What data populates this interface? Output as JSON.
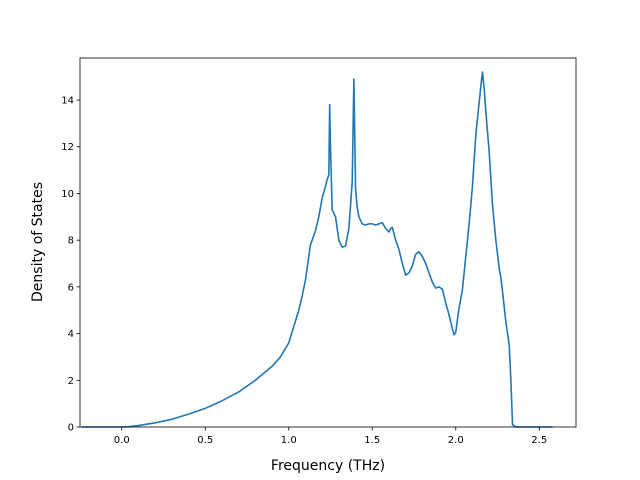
{
  "chart_data": {
    "type": "line",
    "title": "",
    "xlabel": "Frequency (THz)",
    "ylabel": "Density of States",
    "xlim": [
      -0.25,
      2.72
    ],
    "ylim": [
      0,
      15.8
    ],
    "grid": false,
    "legend": "none",
    "xticks": [
      0.0,
      0.5,
      1.0,
      1.5,
      2.0,
      2.5
    ],
    "xtick_labels": [
      "0.0",
      "0.5",
      "1.0",
      "1.5",
      "2.0",
      "2.5"
    ],
    "yticks": [
      0,
      2,
      4,
      6,
      8,
      10,
      12,
      14
    ],
    "ytick_labels": [
      "0",
      "2",
      "4",
      "6",
      "8",
      "10",
      "12",
      "14"
    ],
    "series": [
      {
        "color": "#1f77b4",
        "x": [
          -0.24,
          -0.1,
          0.0,
          0.05,
          0.1,
          0.2,
          0.3,
          0.4,
          0.5,
          0.6,
          0.7,
          0.8,
          0.9,
          0.95,
          1.0,
          1.03,
          1.06,
          1.08,
          1.1,
          1.13,
          1.16,
          1.18,
          1.2,
          1.22,
          1.23,
          1.24,
          1.245,
          1.25,
          1.26,
          1.28,
          1.3,
          1.32,
          1.34,
          1.36,
          1.38,
          1.39,
          1.4,
          1.41,
          1.42,
          1.44,
          1.46,
          1.48,
          1.5,
          1.52,
          1.54,
          1.56,
          1.58,
          1.6,
          1.61,
          1.62,
          1.64,
          1.66,
          1.68,
          1.7,
          1.72,
          1.74,
          1.76,
          1.78,
          1.8,
          1.82,
          1.84,
          1.86,
          1.88,
          1.9,
          1.92,
          1.93,
          1.94,
          1.96,
          1.98,
          1.99,
          2.0,
          2.01,
          2.02,
          2.04,
          2.06,
          2.08,
          2.1,
          2.12,
          2.14,
          2.155,
          2.16,
          2.17,
          2.18,
          2.2,
          2.22,
          2.24,
          2.26,
          2.27,
          2.28,
          2.3,
          2.32,
          2.33,
          2.34,
          2.36,
          2.4,
          2.5,
          2.58
        ],
        "y": [
          0.0,
          0.0,
          0.0,
          0.02,
          0.06,
          0.18,
          0.33,
          0.55,
          0.8,
          1.12,
          1.5,
          2.0,
          2.6,
          3.0,
          3.6,
          4.3,
          5.0,
          5.6,
          6.3,
          7.8,
          8.4,
          9.0,
          9.8,
          10.3,
          10.6,
          10.8,
          13.8,
          12.0,
          9.3,
          9.0,
          8.0,
          7.7,
          7.75,
          8.5,
          10.5,
          14.9,
          10.2,
          9.4,
          9.0,
          8.7,
          8.65,
          8.7,
          8.7,
          8.65,
          8.7,
          8.75,
          8.5,
          8.35,
          8.5,
          8.55,
          8.0,
          7.6,
          7.0,
          6.5,
          6.6,
          6.9,
          7.4,
          7.5,
          7.3,
          7.0,
          6.6,
          6.2,
          5.95,
          6.0,
          5.9,
          5.6,
          5.3,
          4.8,
          4.2,
          3.95,
          4.05,
          4.6,
          5.1,
          5.9,
          7.3,
          8.7,
          10.3,
          12.5,
          13.9,
          14.9,
          15.2,
          14.5,
          13.5,
          11.8,
          9.5,
          8.0,
          6.8,
          6.4,
          5.8,
          4.5,
          3.5,
          2.0,
          0.1,
          0.0,
          0.0,
          0.0,
          0.0
        ]
      }
    ]
  }
}
